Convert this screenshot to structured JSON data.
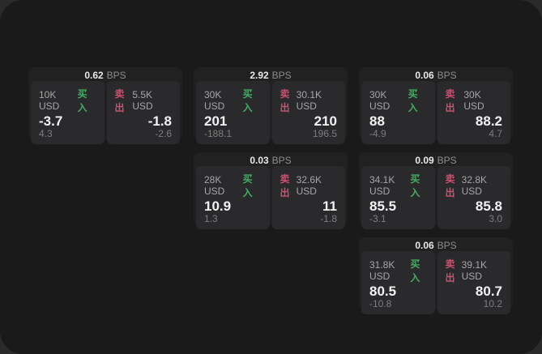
{
  "labels": {
    "bps": "BPS",
    "buy": "买入",
    "sell": "卖出"
  },
  "colors": {
    "panel_bg": "#1a1a1b",
    "card_bg": "#212122",
    "tile_bg": "#2a2a2c",
    "buy_green": "#46ab64",
    "sell_red": "#cb5170"
  },
  "cards": [
    {
      "bps": "0.62",
      "buy": {
        "amount": "10K USD",
        "price": "-3.7",
        "delta": "4.3"
      },
      "sell": {
        "amount": "5.5K USD",
        "price": "-1.8",
        "delta": "-2.6"
      }
    },
    {
      "bps": "2.92",
      "buy": {
        "amount": "30K USD",
        "price": "201",
        "delta": "-188.1"
      },
      "sell": {
        "amount": "30.1K USD",
        "price": "210",
        "delta": "196.5"
      }
    },
    {
      "bps": "0.06",
      "buy": {
        "amount": "30K USD",
        "price": "88",
        "delta": "-4.9"
      },
      "sell": {
        "amount": "30K USD",
        "price": "88.2",
        "delta": "4.7"
      }
    },
    {
      "bps": "0.03",
      "buy": {
        "amount": "28K USD",
        "price": "10.9",
        "delta": "1.3"
      },
      "sell": {
        "amount": "32.6K USD",
        "price": "11",
        "delta": "-1.8"
      }
    },
    {
      "bps": "0.09",
      "buy": {
        "amount": "34.1K USD",
        "price": "85.5",
        "delta": "-3.1"
      },
      "sell": {
        "amount": "32.8K USD",
        "price": "85.8",
        "delta": "3.0"
      }
    },
    {
      "bps": "0.06",
      "buy": {
        "amount": "31.8K USD",
        "price": "80.5",
        "delta": "-10.8"
      },
      "sell": {
        "amount": "39.1K USD",
        "price": "80.7",
        "delta": "10.2"
      }
    }
  ]
}
